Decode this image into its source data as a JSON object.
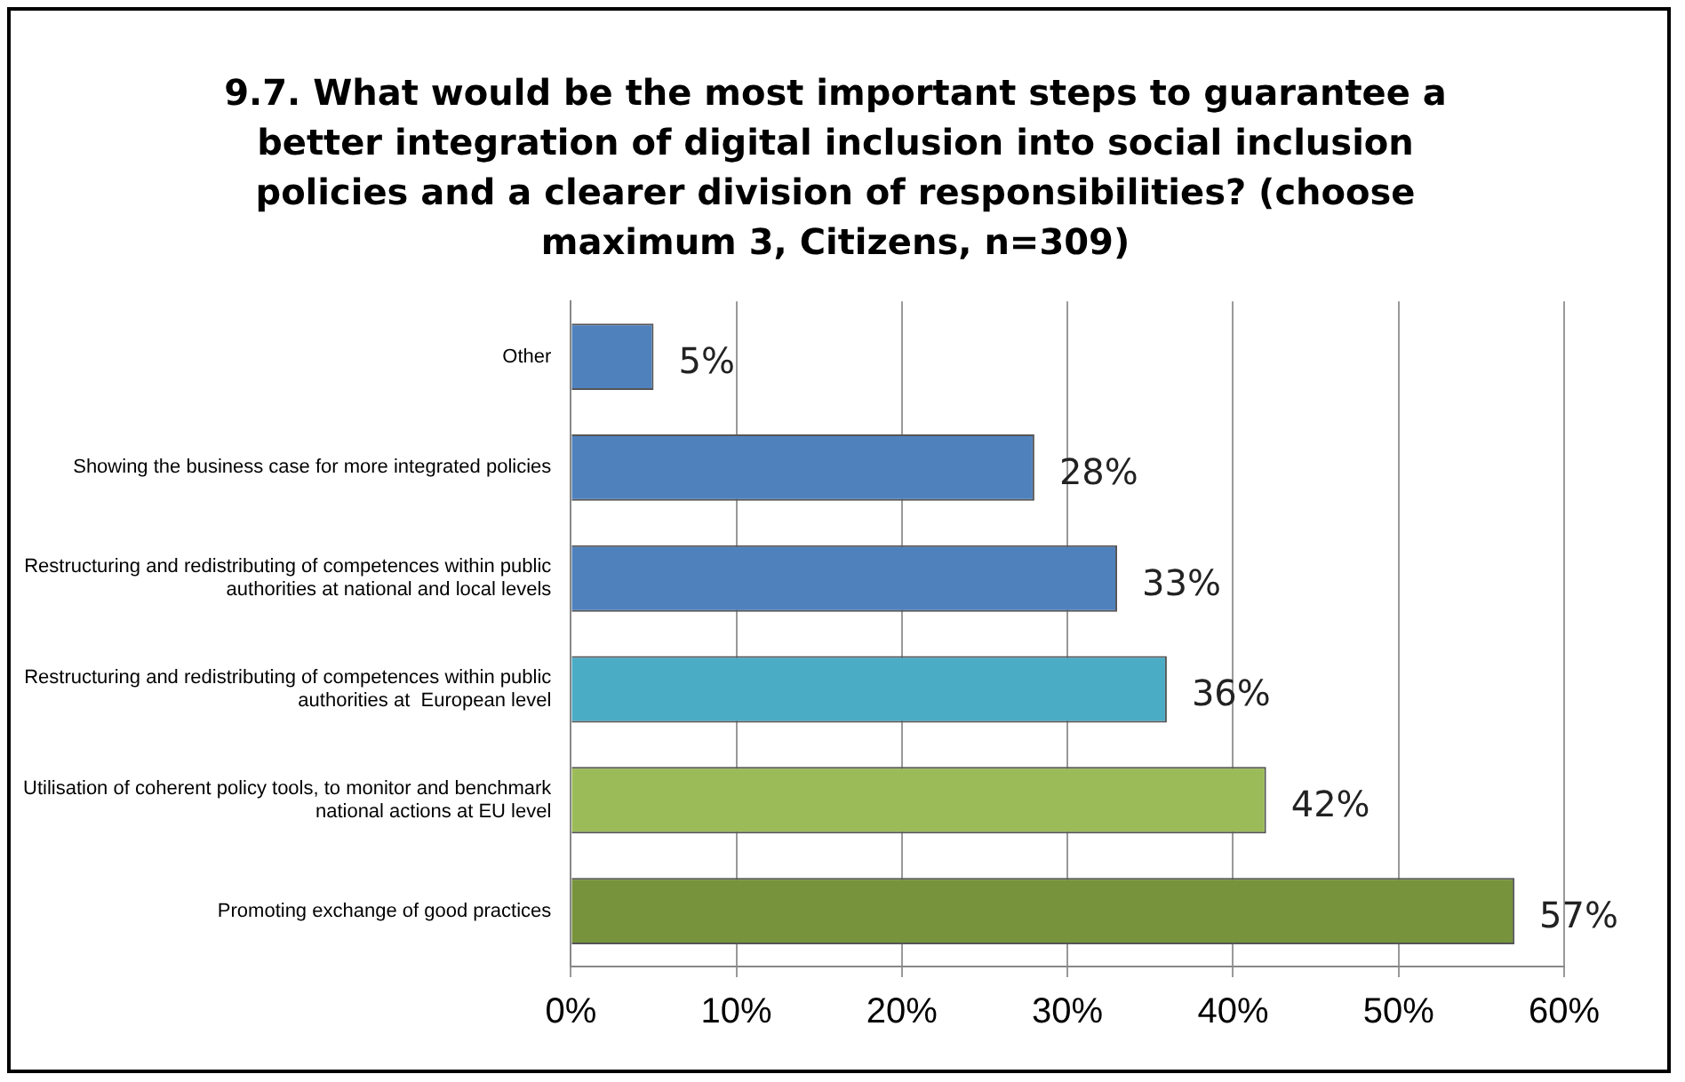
{
  "chart_data": {
    "type": "bar",
    "orientation": "horizontal",
    "title": "9.7. What would be the most important steps to guarantee a better integration of digital inclusion into social inclusion policies and a clearer division of responsibilities? (choose maximum 3, Citizens, n=309)",
    "categories": [
      "Other",
      "Showing the business case for more integrated policies",
      "Restructuring and redistributing of competences within public authorities at national and local levels",
      "Restructuring and redistributing of competences within public authorities at  European level",
      "Utilisation of coherent policy tools, to monitor and benchmark national actions at EU level",
      "Promoting exchange of good practices"
    ],
    "values": [
      5,
      28,
      33,
      36,
      42,
      57
    ],
    "colors": [
      "#4f81bd",
      "#4f81bd",
      "#4f81bd",
      "#4bacc6",
      "#9bbb59",
      "#77933c"
    ],
    "value_labels": [
      "5%",
      "28%",
      "33%",
      "36%",
      "42%",
      "57%"
    ],
    "xlim": [
      0,
      60
    ],
    "xticks": [
      {
        "value": 0,
        "label": "0%"
      },
      {
        "value": 10,
        "label": "10%"
      },
      {
        "value": 20,
        "label": "20%"
      },
      {
        "value": 30,
        "label": "30%"
      },
      {
        "value": 40,
        "label": "40%"
      },
      {
        "value": 50,
        "label": "50%"
      },
      {
        "value": 60,
        "label": "60%"
      }
    ],
    "grid": "x",
    "legend": false
  }
}
